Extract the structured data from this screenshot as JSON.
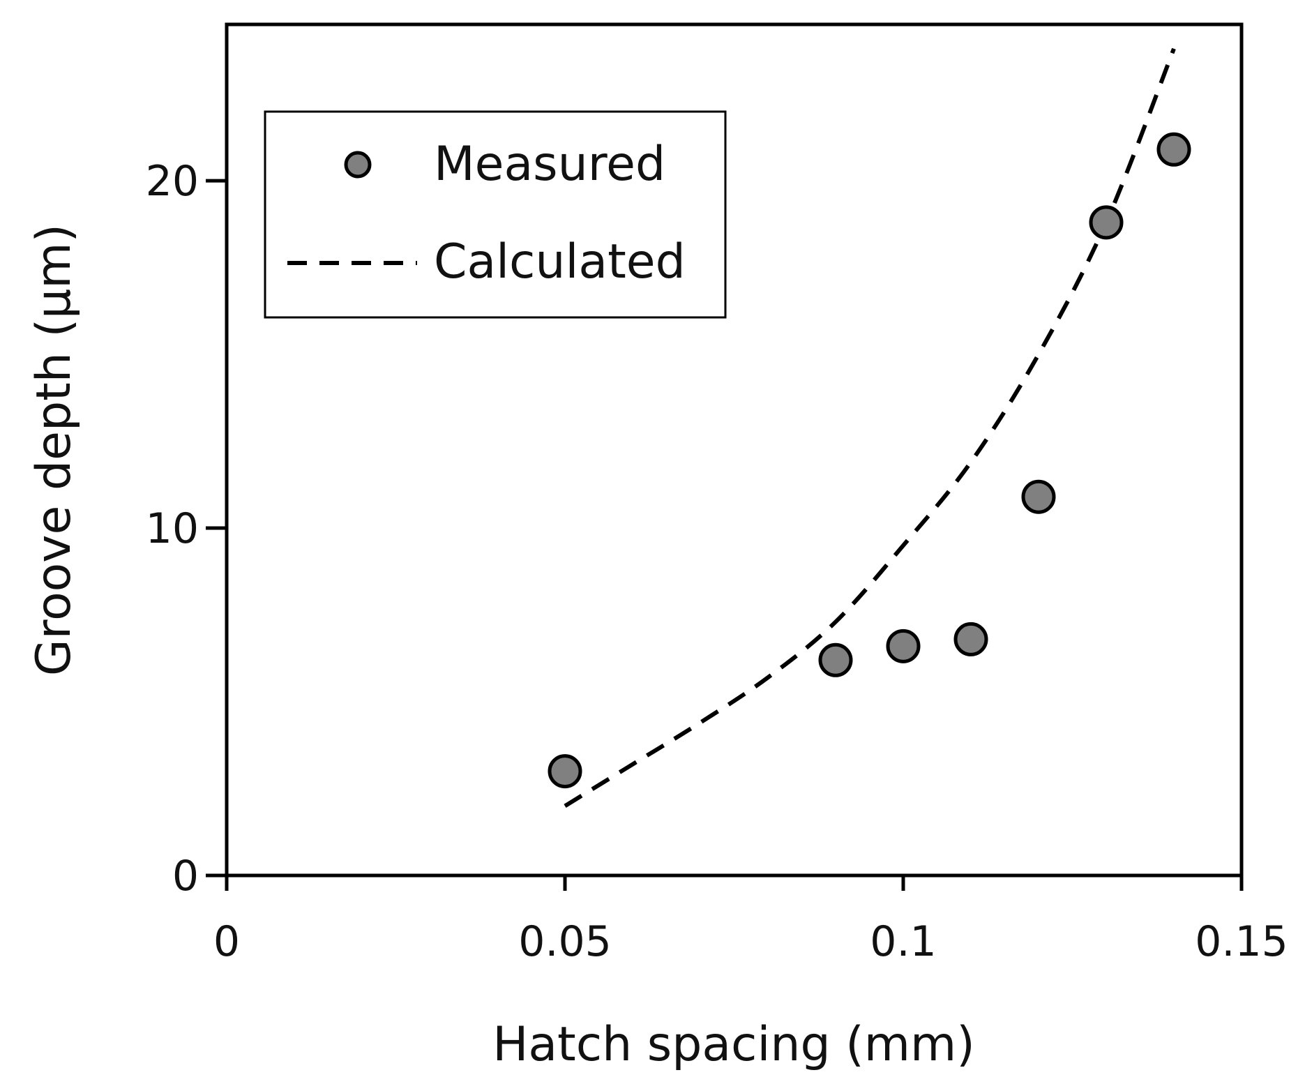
{
  "chart_data": {
    "type": "scatter",
    "title": "",
    "xlabel": "Hatch spacing (mm)",
    "ylabel": "Groove depth (μm)",
    "xlim": [
      0,
      0.15
    ],
    "ylim": [
      0,
      24.5
    ],
    "xticks": [
      0,
      0.05,
      0.1,
      0.15
    ],
    "xtick_labels": [
      "0",
      "0.05",
      "0.1",
      "0.15"
    ],
    "yticks": [
      0,
      10,
      20
    ],
    "ytick_labels": [
      "0",
      "10",
      "20"
    ],
    "grid": false,
    "legend_position": "top-left",
    "series": [
      {
        "name": "Measured",
        "kind": "scatter",
        "x": [
          0.05,
          0.09,
          0.1,
          0.11,
          0.12,
          0.13,
          0.14
        ],
        "y": [
          3.0,
          6.2,
          6.6,
          6.8,
          10.9,
          18.8,
          20.9
        ],
        "color": "#808080"
      },
      {
        "name": "Calculated",
        "kind": "dashed-line",
        "x": [
          0.05,
          0.06,
          0.07,
          0.08,
          0.09,
          0.1,
          0.11,
          0.12,
          0.13,
          0.14
        ],
        "y": [
          2.0,
          3.2,
          4.4,
          5.7,
          7.3,
          9.5,
          11.9,
          15.0,
          18.8,
          23.8
        ],
        "color": "#000000"
      }
    ]
  }
}
